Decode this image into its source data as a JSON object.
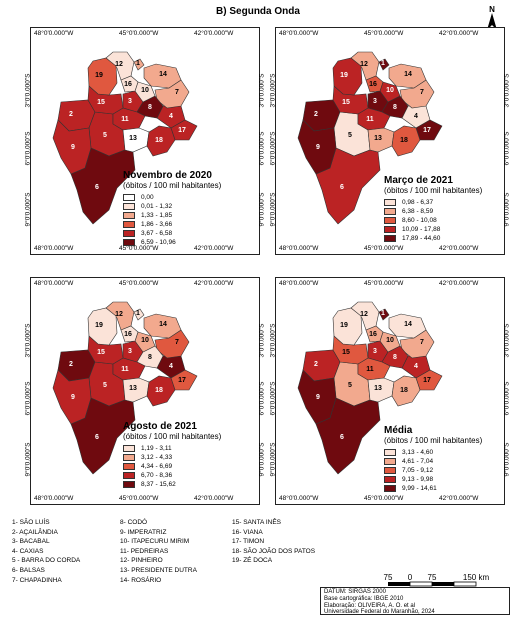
{
  "title": "B) Segunda Onda",
  "coords": {
    "lon": [
      "48°0'0.000\"W",
      "45°0'0.000\"W",
      "42°0'0.000\"W"
    ],
    "lat": [
      "3°0'0.000\"S",
      "6°0'0.000\"S",
      "9°0'0.000\"S"
    ]
  },
  "north_label": "N",
  "legend_subtitle": "(óbitos / 100 mil habitantes)",
  "colors": [
    "#ffffff",
    "#fbe3d8",
    "#f2a98e",
    "#e0583f",
    "#bb2324",
    "#6f0a0f"
  ],
  "panels": [
    {
      "title": "Novembro de 2020",
      "classes": [
        "0,00",
        "0,01 - 1,32",
        "1,33 - 1,85",
        "1,86 - 3,66",
        "3,67 - 6,58",
        "6,59 - 10,96"
      ],
      "values": {
        "1": 2,
        "2": 4,
        "3": 4,
        "4": 4,
        "5": 4,
        "6": 5,
        "7": 2,
        "8": 5,
        "9": 4,
        "10": 1,
        "11": 4,
        "12": 1,
        "13": 0,
        "14": 2,
        "15": 4,
        "16": 1,
        "17": 4,
        "18": 4,
        "19": 3
      }
    },
    {
      "title": "Março de 2021",
      "classes": [
        "0,98 - 6,37",
        "6,38 - 8,59",
        "8,60 - 10,08",
        "10,09 - 17,88",
        "17,89 - 44,60"
      ],
      "values": {
        "1": 4,
        "2": 4,
        "3": 4,
        "4": 0,
        "5": 0,
        "6": 3,
        "7": 1,
        "8": 4,
        "9": 4,
        "10": 3,
        "11": 3,
        "12": 1,
        "13": 1,
        "14": 1,
        "15": 3,
        "16": 2,
        "17": 4,
        "18": 2,
        "19": 3
      }
    },
    {
      "title": "Agosto de 2021",
      "classes": [
        "1,19 - 3,11",
        "3,12 - 4,33",
        "4,34 - 6,69",
        "6,70 - 8,36",
        "8,37 - 15,62"
      ],
      "values": {
        "1": 0,
        "2": 4,
        "3": 3,
        "4": 4,
        "5": 3,
        "6": 4,
        "7": 2,
        "8": 0,
        "9": 3,
        "10": 1,
        "11": 3,
        "12": 1,
        "13": 0,
        "14": 1,
        "15": 3,
        "16": 0,
        "17": 2,
        "18": 3,
        "19": 0
      }
    },
    {
      "title": "Média",
      "classes": [
        "3,13 - 4,60",
        "4,61 - 7,04",
        "7,05 - 9,12",
        "9,13 - 9,98",
        "9,99 - 14,61"
      ],
      "values": {
        "1": 4,
        "2": 3,
        "3": 3,
        "4": 3,
        "5": 1,
        "6": 4,
        "7": 1,
        "8": 3,
        "9": 4,
        "10": 1,
        "11": 2,
        "12": 0,
        "13": 0,
        "14": 0,
        "15": 2,
        "16": 1,
        "17": 2,
        "18": 1,
        "19": 0
      }
    }
  ],
  "municipalities": [
    [
      "1- SÃO LUÍS",
      "2- AÇAILÂNDIA",
      "3- BACABAL",
      "4- CAXIAS",
      "5 - BARRA DO CORDA",
      "6- BALSAS",
      "7- CHAPADINHA"
    ],
    [
      "8- CODÓ",
      "9- IMPERATRIZ",
      "10- ITAPECURU MIRIM",
      "11- PEDREIRAS",
      "12- PINHEIRO",
      "13- PRESIDENTE DUTRA",
      "14- ROSÁRIO"
    ],
    [
      "15- SANTA INÊS",
      "16- VIANA",
      "17- TIMON",
      "18- SÃO JOÃO DOS PATOS",
      "19- ZÉ DOCA"
    ]
  ],
  "scale": {
    "ticks": [
      "75",
      "0",
      "75",
      "150 km"
    ]
  },
  "credits": [
    "DATUM: SIRGAS 2000",
    "Base cartográfica: IBGE 2010",
    "Elaboração: OLIVEIRA, A. O.  et al",
    "Universidade Federal do Maranhão, 2024"
  ]
}
